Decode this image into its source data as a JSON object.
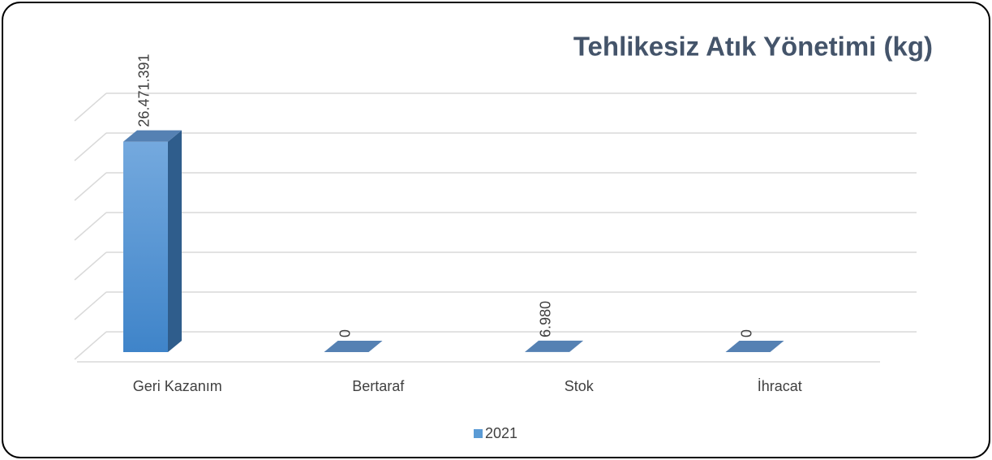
{
  "chart_data": {
    "type": "bar3d",
    "title": "Tehlikesiz Atık Yönetimi (kg)",
    "categories": [
      "Geri Kazanım",
      "Bertaraf",
      "Stok",
      "İhracat"
    ],
    "series": [
      {
        "name": "2021",
        "color": "#5b9bd5",
        "values": [
          26471391,
          0,
          6980,
          0
        ],
        "value_labels": [
          "26.471.391",
          "0",
          "6.980",
          "0"
        ]
      }
    ],
    "ylim": [
      0,
      30000000
    ],
    "yticks": [
      0,
      5000000,
      10000000,
      15000000,
      20000000,
      25000000,
      30000000
    ],
    "grid": true,
    "legend": "bottom"
  }
}
